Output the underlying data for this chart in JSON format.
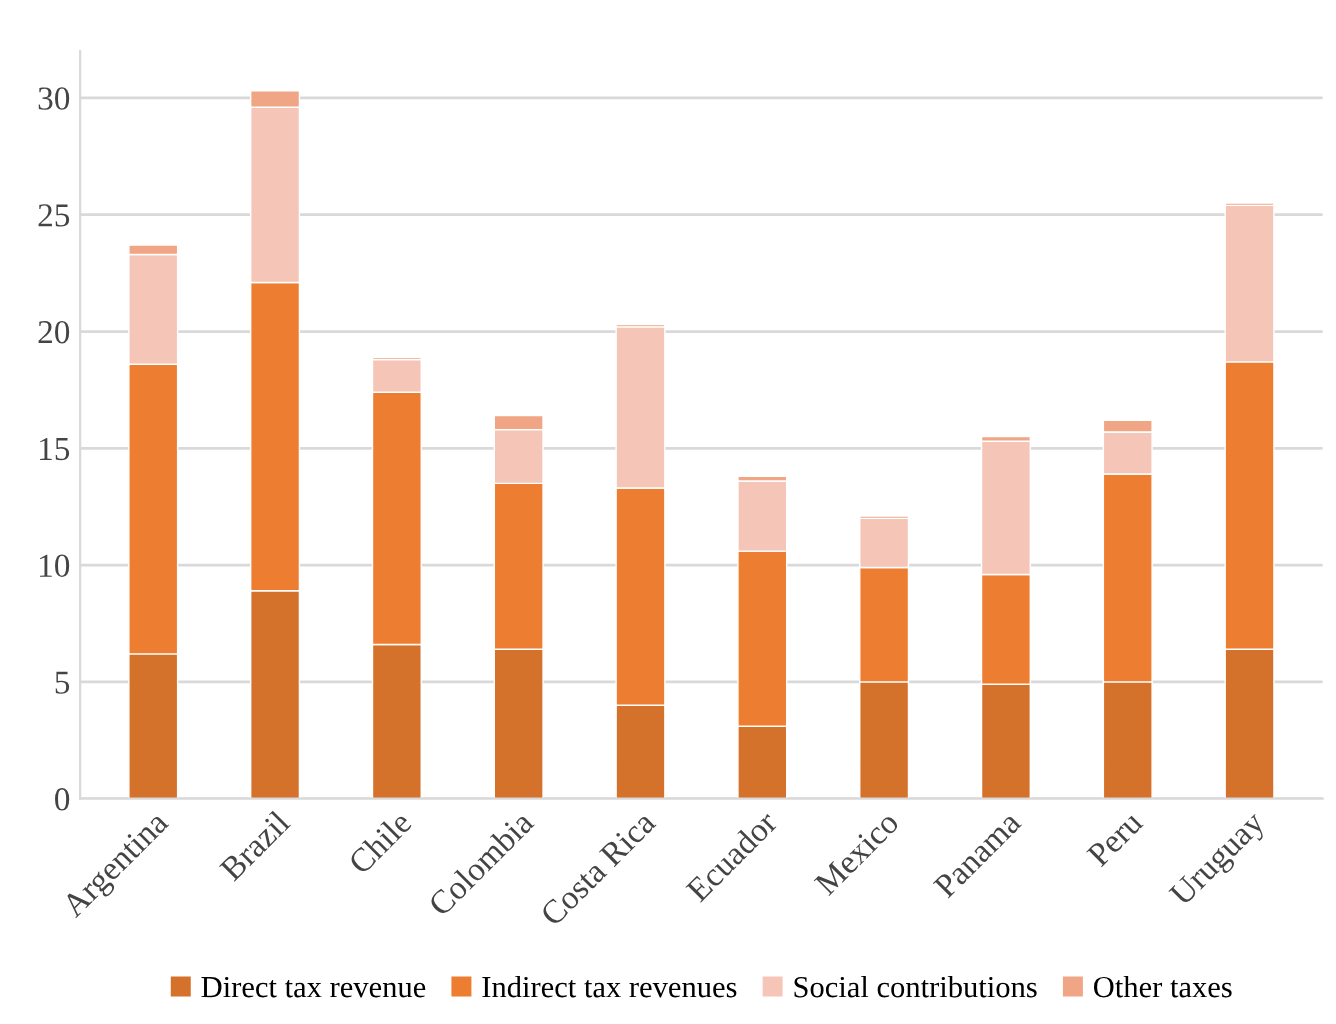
{
  "chart_data": {
    "type": "bar",
    "stacked": true,
    "categories": [
      "Argentina",
      "Brazil",
      "Chile",
      "Colombia",
      "Costa Rica",
      "Ecuador",
      "Mexico",
      "Panama",
      "Peru",
      "Uruguay"
    ],
    "series": [
      {
        "name": "Direct tax revenue",
        "color": "#d4712a",
        "values": [
          6.2,
          8.9,
          6.6,
          6.4,
          4.0,
          3.1,
          5.0,
          4.9,
          5.0,
          6.4
        ]
      },
      {
        "name": "Indirect tax revenues",
        "color": "#ed7d31",
        "values": [
          12.4,
          13.2,
          10.8,
          7.1,
          9.3,
          7.5,
          4.9,
          4.7,
          8.9,
          12.3
        ]
      },
      {
        "name": "Social contributions",
        "color": "#f5c6b8",
        "values": [
          4.7,
          7.5,
          1.4,
          2.3,
          6.9,
          3.0,
          2.1,
          5.7,
          1.8,
          6.7
        ]
      },
      {
        "name": "Other taxes",
        "color": "#f0a585",
        "values": [
          0.4,
          0.7,
          0.1,
          0.6,
          0.1,
          0.2,
          0.1,
          0.2,
          0.5,
          0.1
        ]
      }
    ],
    "ylim": [
      0,
      32
    ],
    "yticks": [
      0,
      5,
      10,
      15,
      20,
      25,
      30
    ],
    "grid": "y",
    "legend": "bottom"
  }
}
